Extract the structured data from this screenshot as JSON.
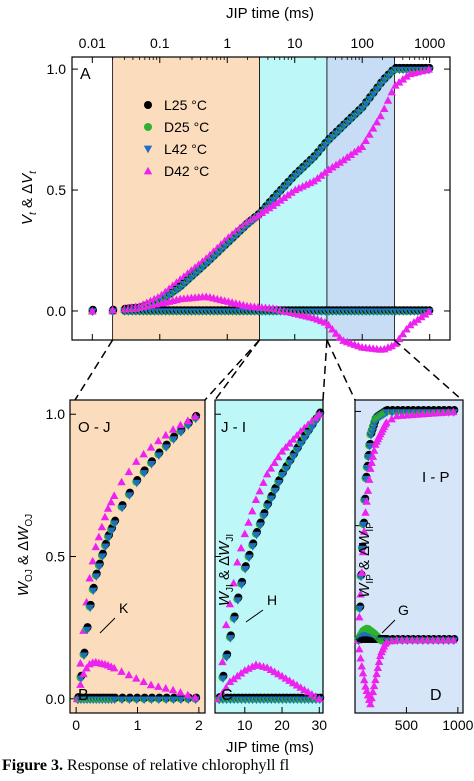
{
  "figure": {
    "top_axis_label": "JIP time (ms)",
    "bottom_axis_label": "JIP time (ms)",
    "caption_label": "Figure 3.",
    "caption_text": "Response of relative chlorophyll fl"
  },
  "colors": {
    "L25": "#000000",
    "D25": "#2db32d",
    "L42": "#1f6fc0",
    "D42": "#ee22ee",
    "band_OJ": "#fbdcbc",
    "band_JI": "#bdf7f7",
    "band_IP": "#c7dcf5"
  },
  "legend": [
    {
      "key": "L25",
      "label": "L25 °C",
      "marker": "circle"
    },
    {
      "key": "D25",
      "label": "D25 °C",
      "marker": "circle"
    },
    {
      "key": "L42",
      "label": "L42 °C",
      "marker": "triangle-down"
    },
    {
      "key": "D42",
      "label": "D42 °C",
      "marker": "triangle-up"
    }
  ],
  "chart_data": [
    {
      "panel": "A",
      "type": "scatter",
      "xscale": "log",
      "xlim": [
        0.005,
        2000
      ],
      "ylim": [
        -0.12,
        1.05
      ],
      "ylabel": "V_t & ΔV_t",
      "xticks": [
        0.01,
        0.1,
        1,
        10,
        100,
        1000
      ],
      "xtick_labels": [
        "0.01",
        "0.1",
        "1",
        "10",
        "100",
        "1000"
      ],
      "yticks": [
        0.0,
        0.5,
        1.0
      ],
      "ytick_labels": [
        "0.0",
        "0.5",
        "1.0"
      ],
      "bands_ms": [
        [
          0.02,
          3
        ],
        [
          3,
          30
        ],
        [
          30,
          300
        ]
      ],
      "legend_position": "upper-left",
      "series_curves": {
        "L25_V": [
          [
            0.01,
            0
          ],
          [
            0.02,
            0
          ],
          [
            0.05,
            0.01
          ],
          [
            0.1,
            0.04
          ],
          [
            0.2,
            0.1
          ],
          [
            0.5,
            0.2
          ],
          [
            1,
            0.28
          ],
          [
            2,
            0.36
          ],
          [
            3,
            0.4
          ],
          [
            5,
            0.47
          ],
          [
            10,
            0.56
          ],
          [
            20,
            0.64
          ],
          [
            30,
            0.7
          ],
          [
            50,
            0.76
          ],
          [
            100,
            0.84
          ],
          [
            200,
            0.95
          ],
          [
            300,
            1.0
          ],
          [
            1000,
            1.0
          ]
        ],
        "D42_V": [
          [
            0.01,
            0
          ],
          [
            0.02,
            0
          ],
          [
            0.05,
            0.02
          ],
          [
            0.1,
            0.06
          ],
          [
            0.2,
            0.13
          ],
          [
            0.5,
            0.22
          ],
          [
            1,
            0.3
          ],
          [
            2,
            0.37
          ],
          [
            3,
            0.4
          ],
          [
            5,
            0.44
          ],
          [
            10,
            0.5
          ],
          [
            20,
            0.54
          ],
          [
            30,
            0.58
          ],
          [
            50,
            0.62
          ],
          [
            100,
            0.68
          ],
          [
            200,
            0.82
          ],
          [
            300,
            0.93
          ],
          [
            500,
            0.98
          ],
          [
            1000,
            1.0
          ]
        ],
        "D42_dV": [
          [
            0.01,
            0
          ],
          [
            0.05,
            0.01
          ],
          [
            0.1,
            0.03
          ],
          [
            0.2,
            0.05
          ],
          [
            0.5,
            0.06
          ],
          [
            1,
            0.04
          ],
          [
            2,
            0.02
          ],
          [
            5,
            0.01
          ],
          [
            10,
            -0.01
          ],
          [
            20,
            -0.03
          ],
          [
            30,
            -0.05
          ],
          [
            50,
            -0.12
          ],
          [
            100,
            -0.15
          ],
          [
            200,
            -0.16
          ],
          [
            300,
            -0.14
          ],
          [
            500,
            -0.06
          ],
          [
            1000,
            0
          ]
        ]
      },
      "annotations": []
    },
    {
      "panel": "B",
      "label": "O - J",
      "type": "scatter",
      "xlim": [
        -0.1,
        2.1
      ],
      "ylim": [
        -0.05,
        1.05
      ],
      "ylabel": "W_OJ & ΔW_OJ",
      "xticks": [
        0,
        1,
        2
      ],
      "yticks": [
        0.0,
        0.5,
        1.0
      ],
      "ytick_labels": [
        "0.0",
        "0.5",
        "1.0"
      ],
      "series_curves": {
        "L25_W": [
          [
            0.02,
            0
          ],
          [
            0.1,
            0.12
          ],
          [
            0.2,
            0.3
          ],
          [
            0.3,
            0.42
          ],
          [
            0.5,
            0.56
          ],
          [
            0.7,
            0.66
          ],
          [
            1,
            0.77
          ],
          [
            1.3,
            0.85
          ],
          [
            1.6,
            0.92
          ],
          [
            2,
            1.0
          ]
        ],
        "D42_W": [
          [
            0.02,
            0
          ],
          [
            0.1,
            0.2
          ],
          [
            0.2,
            0.4
          ],
          [
            0.3,
            0.52
          ],
          [
            0.5,
            0.66
          ],
          [
            0.7,
            0.75
          ],
          [
            1,
            0.84
          ],
          [
            1.3,
            0.9
          ],
          [
            1.6,
            0.95
          ],
          [
            2,
            1.0
          ]
        ],
        "D42_dW": [
          [
            0.02,
            0
          ],
          [
            0.1,
            0.08
          ],
          [
            0.2,
            0.12
          ],
          [
            0.3,
            0.13
          ],
          [
            0.5,
            0.12
          ],
          [
            0.8,
            0.09
          ],
          [
            1.2,
            0.05
          ],
          [
            1.6,
            0.03
          ],
          [
            2,
            0.0
          ]
        ]
      },
      "annotation": "K"
    },
    {
      "panel": "C",
      "label": "J - I",
      "type": "scatter",
      "xlim": [
        2,
        31
      ],
      "ylim": [
        -0.05,
        1.05
      ],
      "ylabel": "W_JI & ΔW_JI",
      "xticks": [
        10,
        20,
        30
      ],
      "series_curves": {
        "L25_W": [
          [
            3,
            0
          ],
          [
            5,
            0.15
          ],
          [
            8,
            0.35
          ],
          [
            10,
            0.46
          ],
          [
            13,
            0.58
          ],
          [
            16,
            0.68
          ],
          [
            20,
            0.79
          ],
          [
            25,
            0.9
          ],
          [
            30,
            1.0
          ]
        ],
        "D42_W": [
          [
            3,
            0
          ],
          [
            5,
            0.26
          ],
          [
            8,
            0.48
          ],
          [
            10,
            0.58
          ],
          [
            13,
            0.7
          ],
          [
            16,
            0.79
          ],
          [
            20,
            0.87
          ],
          [
            25,
            0.94
          ],
          [
            30,
            1.0
          ]
        ],
        "D42_dW": [
          [
            3,
            0
          ],
          [
            6,
            0.06
          ],
          [
            10,
            0.1
          ],
          [
            13,
            0.12
          ],
          [
            16,
            0.11
          ],
          [
            20,
            0.08
          ],
          [
            25,
            0.04
          ],
          [
            30,
            0
          ]
        ]
      },
      "annotation": "H"
    },
    {
      "panel": "D",
      "label": "I - P",
      "type": "scatter",
      "xlim": [
        0,
        1050
      ],
      "ylim": [
        -0.32,
        1.05
      ],
      "ylabel": "W_IP & ΔW_IP",
      "xticks": [
        500,
        1000
      ],
      "xtick_labels": [
        "500",
        "1000"
      ],
      "series_curves": {
        "L25_W": [
          [
            30,
            0
          ],
          [
            60,
            0.35
          ],
          [
            100,
            0.7
          ],
          [
            150,
            0.9
          ],
          [
            200,
            0.97
          ],
          [
            300,
            1.0
          ],
          [
            1000,
            1.0
          ]
        ],
        "D42_W": [
          [
            30,
            0
          ],
          [
            60,
            0.25
          ],
          [
            100,
            0.55
          ],
          [
            150,
            0.75
          ],
          [
            200,
            0.86
          ],
          [
            300,
            0.95
          ],
          [
            400,
            0.98
          ],
          [
            1000,
            1.0
          ]
        ],
        "D42_dW": [
          [
            30,
            0
          ],
          [
            60,
            -0.1
          ],
          [
            100,
            -0.2
          ],
          [
            150,
            -0.28
          ],
          [
            200,
            -0.17
          ],
          [
            250,
            -0.06
          ],
          [
            300,
            -0.01
          ],
          [
            400,
            0
          ],
          [
            1000,
            0
          ]
        ],
        "D25_dW": [
          [
            30,
            0
          ],
          [
            80,
            0.04
          ],
          [
            120,
            0.05
          ],
          [
            180,
            0.03
          ],
          [
            250,
            0
          ],
          [
            1000,
            0
          ]
        ]
      },
      "annotation": "G"
    }
  ]
}
